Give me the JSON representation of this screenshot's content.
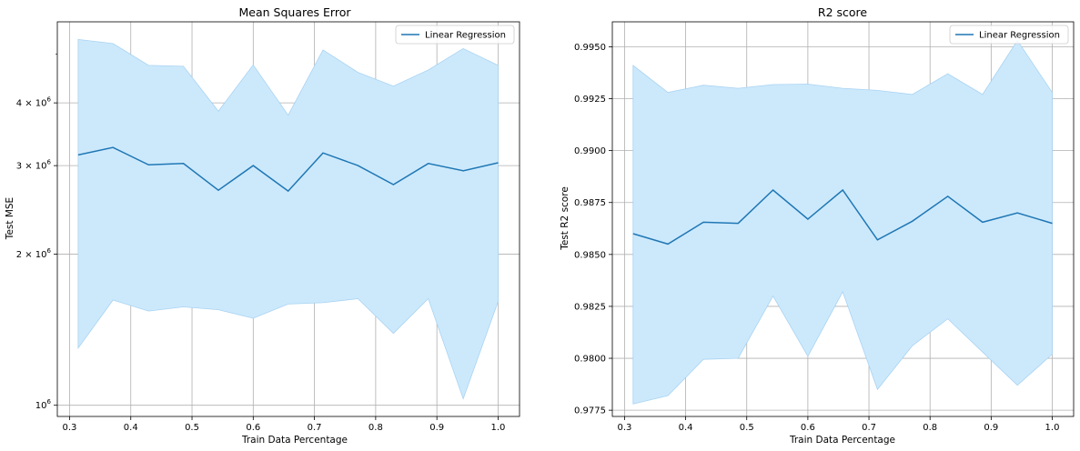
{
  "chart_data": [
    {
      "type": "line",
      "title": "Mean Squares Error",
      "xlabel": "Train Data Percentage",
      "ylabel": "Test MSE",
      "yscale": "log",
      "grid": true,
      "legend_placement": "top-right",
      "xlim": [
        0.28,
        1.035
      ],
      "ylim": [
        950000,
        5800000
      ],
      "xticks": [
        {
          "value": 0.3,
          "label": "0.3"
        },
        {
          "value": 0.4,
          "label": "0.4"
        },
        {
          "value": 0.5,
          "label": "0.5"
        },
        {
          "value": 0.6,
          "label": "0.6"
        },
        {
          "value": 0.7,
          "label": "0.7"
        },
        {
          "value": 0.8,
          "label": "0.8"
        },
        {
          "value": 0.9,
          "label": "0.9"
        },
        {
          "value": 1.0,
          "label": "1.0"
        }
      ],
      "yticks": [
        {
          "value": 1000000,
          "base": "10",
          "exp": "6"
        },
        {
          "value": 2000000,
          "base": "2 × 10",
          "exp": "6"
        },
        {
          "value": 3000000,
          "base": "3 × 10",
          "exp": "6"
        },
        {
          "value": 4000000,
          "base": "4 × 10",
          "exp": "6"
        }
      ],
      "x": [
        0.314,
        0.371,
        0.429,
        0.486,
        0.543,
        0.6,
        0.657,
        0.714,
        0.771,
        0.829,
        0.886,
        0.943,
        1.0
      ],
      "series": [
        {
          "name": "Linear Regression",
          "color": "#1f77b4",
          "values": [
            3150000,
            3260000,
            3010000,
            3030000,
            2680000,
            3000000,
            2670000,
            3180000,
            3000000,
            2750000,
            3030000,
            2930000,
            3040000
          ],
          "band_upper": [
            5350000,
            5250000,
            4750000,
            4730000,
            3850000,
            4760000,
            3780000,
            5100000,
            4600000,
            4320000,
            4650000,
            5130000,
            4750000
          ],
          "band_lower": [
            1300000,
            1620000,
            1540000,
            1570000,
            1550000,
            1490000,
            1590000,
            1600000,
            1630000,
            1390000,
            1630000,
            1030000,
            1610000
          ],
          "band_color": "#cce9fc"
        }
      ]
    },
    {
      "type": "line",
      "title": "R2 score",
      "xlabel": "Train Data Percentage",
      "ylabel": "Test R2 score",
      "grid": true,
      "legend_placement": "top-right",
      "xlim": [
        0.28,
        1.035
      ],
      "ylim": [
        0.9772,
        0.9962
      ],
      "xticks": [
        {
          "value": 0.3,
          "label": "0.3"
        },
        {
          "value": 0.4,
          "label": "0.4"
        },
        {
          "value": 0.5,
          "label": "0.5"
        },
        {
          "value": 0.6,
          "label": "0.6"
        },
        {
          "value": 0.7,
          "label": "0.7"
        },
        {
          "value": 0.8,
          "label": "0.8"
        },
        {
          "value": 0.9,
          "label": "0.9"
        },
        {
          "value": 1.0,
          "label": "1.0"
        }
      ],
      "yticks": [
        {
          "value": 0.9775,
          "label": "0.9775"
        },
        {
          "value": 0.98,
          "label": "0.9800"
        },
        {
          "value": 0.9825,
          "label": "0.9825"
        },
        {
          "value": 0.985,
          "label": "0.9850"
        },
        {
          "value": 0.9875,
          "label": "0.9875"
        },
        {
          "value": 0.99,
          "label": "0.9900"
        },
        {
          "value": 0.9925,
          "label": "0.9925"
        },
        {
          "value": 0.995,
          "label": "0.9950"
        }
      ],
      "x": [
        0.314,
        0.371,
        0.429,
        0.486,
        0.543,
        0.6,
        0.657,
        0.714,
        0.771,
        0.829,
        0.886,
        0.943,
        1.0
      ],
      "series": [
        {
          "name": "Linear Regression",
          "color": "#1f77b4",
          "values": [
            0.986,
            0.9855,
            0.98655,
            0.9865,
            0.9881,
            0.9867,
            0.9881,
            0.9857,
            0.9866,
            0.9878,
            0.98655,
            0.987,
            0.9865
          ],
          "band_upper": [
            0.9941,
            0.9928,
            0.99315,
            0.993,
            0.99318,
            0.9932,
            0.993,
            0.9929,
            0.9927,
            0.9937,
            0.9927,
            0.9953,
            0.9928
          ],
          "band_lower": [
            0.9778,
            0.9782,
            0.97995,
            0.98,
            0.983,
            0.9801,
            0.9832,
            0.9785,
            0.9806,
            0.9819,
            0.9803,
            0.9787,
            0.9802
          ],
          "band_color": "#cce9fc"
        }
      ]
    }
  ]
}
